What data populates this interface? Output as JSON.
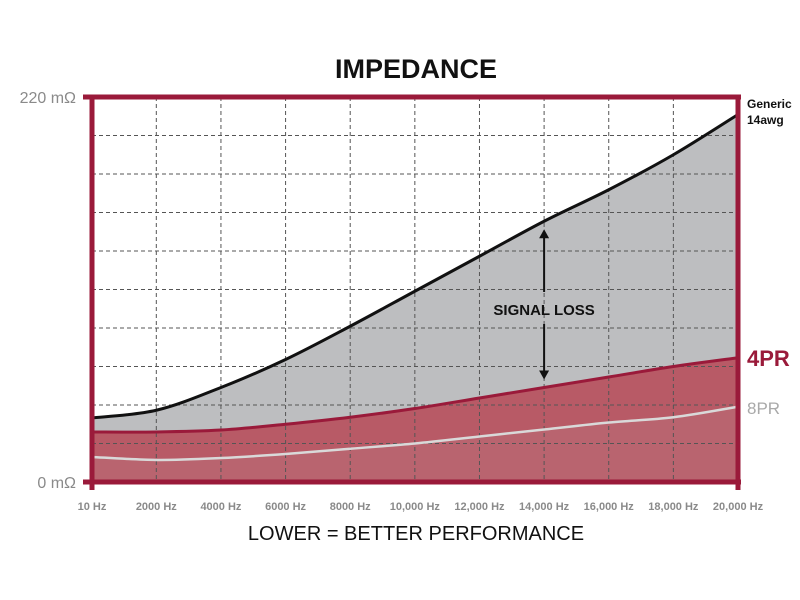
{
  "chart_data": {
    "type": "area",
    "title": "IMPEDANCE",
    "xlabel": "LOWER = BETTER PERFORMANCE",
    "ylabel": "",
    "x": [
      10,
      2000,
      4000,
      6000,
      8000,
      10000,
      12000,
      14000,
      16000,
      18000,
      20000
    ],
    "x_tick_labels": [
      "10 Hz",
      "2000 Hz",
      "4000 Hz",
      "6000 Hz",
      "8000 Hz",
      "10,000 Hz",
      "12,000 Hz",
      "14,000 Hz",
      "16,000 Hz",
      "18,000 Hz",
      "20,000 Hz"
    ],
    "y_tick_labels": [
      {
        "value": 220,
        "label": "220 mΩ"
      },
      {
        "value": 0,
        "label": "0 mΩ"
      }
    ],
    "xlim": [
      10,
      20000
    ],
    "ylim": [
      0,
      220
    ],
    "y_grid_step": 22,
    "grid": true,
    "series": [
      {
        "name": "Generic 14awg",
        "label_lines": [
          "Generic",
          "14awg"
        ],
        "color": "#111111",
        "fill": "#bdbec0",
        "values": [
          36.6,
          41,
          54,
          70,
          89,
          109,
          129,
          149,
          167,
          187,
          210
        ]
      },
      {
        "name": "4PR",
        "label_lines": [
          "4PR"
        ],
        "color": "#9a1a3a",
        "fill": "#b85a66",
        "values": [
          28.6,
          28.6,
          29.7,
          33,
          37,
          42,
          48,
          54,
          60,
          66,
          71
        ]
      },
      {
        "name": "8PR",
        "label_lines": [
          "8PR"
        ],
        "color": "#d9d9d9",
        "fill": "#b9646f",
        "values": [
          14.3,
          12.6,
          13.7,
          16,
          19,
          22,
          26,
          30,
          34,
          37,
          43
        ]
      }
    ],
    "annotations": [
      {
        "text": "SIGNAL LOSS",
        "x": 14000,
        "from_series": "4PR",
        "to_series": "Generic 14awg"
      }
    ],
    "frame_color": "#9a1a3a",
    "legend": "right"
  }
}
